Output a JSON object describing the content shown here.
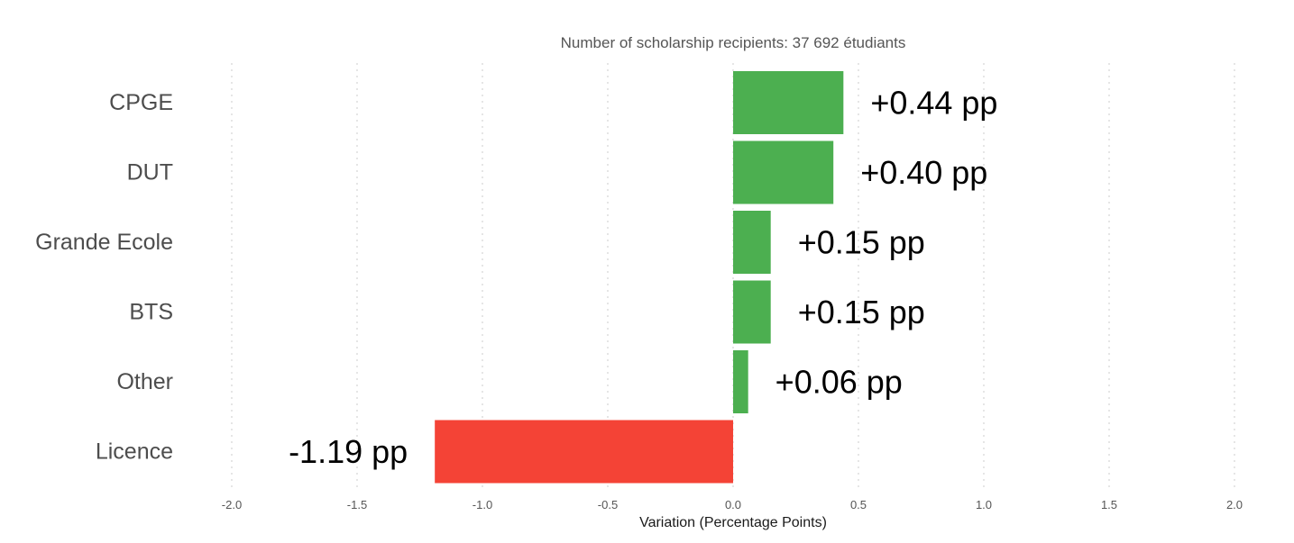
{
  "chart_data": {
    "type": "bar",
    "orientation": "horizontal",
    "subtitle": "Number of scholarship recipients: 37 692 étudiants",
    "xlabel": "Variation (Percentage Points)",
    "ylabel": "",
    "xlim": [
      -2.0,
      2.0
    ],
    "xticks": [
      -2.0,
      -1.5,
      -1.0,
      -0.5,
      0.0,
      0.5,
      1.0,
      1.5,
      2.0
    ],
    "xtick_labels": [
      "-2.0",
      "-1.5",
      "-1.0",
      "-0.5",
      "0.0",
      "0.5",
      "1.0",
      "1.5",
      "2.0"
    ],
    "grid": true,
    "legend": "none",
    "categories": [
      "CPGE",
      "DUT",
      "Grande Ecole",
      "BTS",
      "Other",
      "Licence"
    ],
    "values": [
      0.44,
      0.4,
      0.15,
      0.15,
      0.06,
      -1.19
    ],
    "data_labels": [
      "+0.44 pp",
      "+0.40 pp",
      "+0.15 pp",
      "+0.15 pp",
      "+0.06 pp",
      "-1.19 pp"
    ],
    "colors": {
      "positive": "#4caf50",
      "negative": "#f44336"
    }
  }
}
